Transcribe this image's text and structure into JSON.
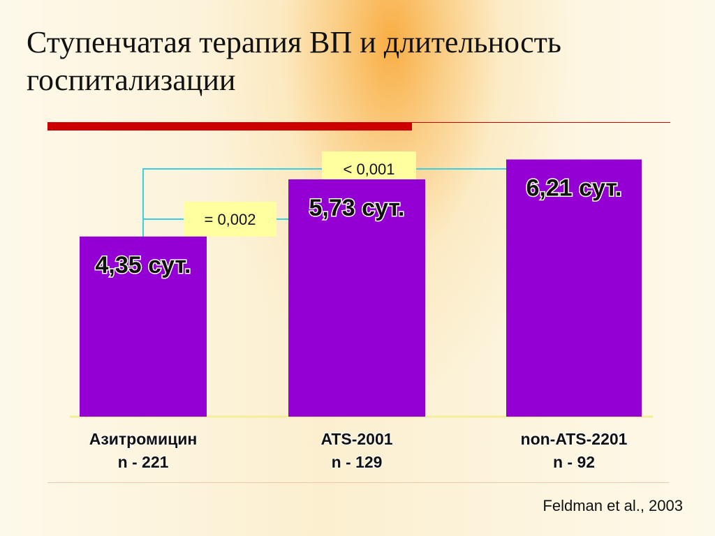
{
  "title": "Ступенчатая терапия ВП и длительность госпитализации",
  "source": "Feldman et al., 2003",
  "chart_data": {
    "type": "bar",
    "categories": [
      [
        "Азитромицин",
        "n - 221"
      ],
      [
        "ATS-2001",
        "n - 129"
      ],
      [
        "non-ATS-2201",
        "n - 92"
      ]
    ],
    "values": [
      4.35,
      5.73,
      6.21
    ],
    "value_labels": [
      "4,35 сут.",
      "5,73 сут.",
      "6,21 сут."
    ],
    "ylim": [
      0,
      9.1
    ],
    "bar_color": "#9400d3",
    "bracket_color": "#3ad0e0",
    "pvalue_box_color": "#ffffa0",
    "comparisons": [
      {
        "from": 0,
        "to": 1,
        "label": "= 0,002"
      },
      {
        "from": 0,
        "to": 2,
        "label": "< 0,001"
      }
    ]
  }
}
